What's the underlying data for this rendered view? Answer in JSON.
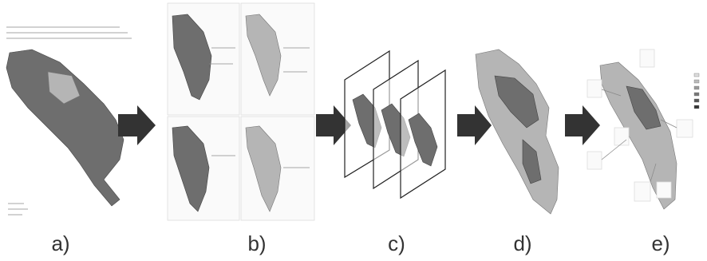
{
  "panels": [
    {
      "label": "a)"
    },
    {
      "label": "b)"
    },
    {
      "label": "c)"
    },
    {
      "label": "d)"
    },
    {
      "label": "e)"
    }
  ]
}
